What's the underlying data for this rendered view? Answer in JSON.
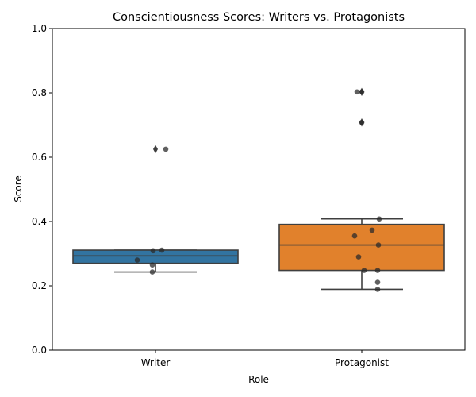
{
  "chart_data": {
    "type": "box",
    "title": "Conscientiousness Scores: Writers vs. Protagonists",
    "xlabel": "Role",
    "ylabel": "Score",
    "ylim": [
      0,
      1
    ],
    "yticks": [
      "0.0",
      "0.2",
      "0.4",
      "0.6",
      "0.8",
      "1.0"
    ],
    "ytick_values": [
      0,
      0.2,
      0.4,
      0.6,
      0.8,
      1.0
    ],
    "categories": [
      "Writer",
      "Protagonist"
    ],
    "colors": [
      "#3274a1",
      "#e1812c"
    ],
    "boxes": [
      {
        "category": "Writer",
        "whisker_low": 0.243,
        "q1": 0.27,
        "median": 0.293,
        "q3": 0.311,
        "whisker_high": 0.311,
        "outliers": [
          0.625
        ]
      },
      {
        "category": "Protagonist",
        "whisker_low": 0.189,
        "q1": 0.248,
        "median": 0.327,
        "q3": 0.391,
        "whisker_high": 0.408,
        "outliers": [
          0.708,
          0.803
        ]
      }
    ],
    "points": [
      {
        "category": "Writer",
        "values": [
          0.625,
          0.311,
          0.309,
          0.28,
          0.265,
          0.243
        ]
      },
      {
        "category": "Protagonist",
        "values": [
          0.803,
          0.803,
          0.708,
          0.408,
          0.373,
          0.355,
          0.327,
          0.29,
          0.248,
          0.248,
          0.211,
          0.189
        ]
      }
    ],
    "grid": false,
    "legend": "none"
  }
}
